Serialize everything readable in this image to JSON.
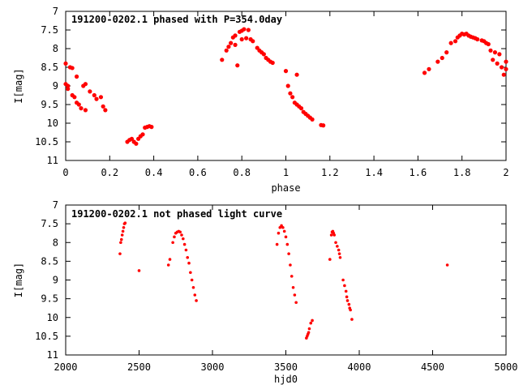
{
  "chart_data": [
    {
      "type": "scatter",
      "title": "191200-0202.1 phased with P=354.0day",
      "xlabel": "phase",
      "ylabel": "I[mag]",
      "xlim": [
        0,
        2
      ],
      "ylim": [
        11,
        7
      ],
      "x_inverted": false,
      "y_inverted": true,
      "x_ticks": [
        0,
        0.2,
        0.4,
        0.6,
        0.8,
        1,
        1.2,
        1.4,
        1.6,
        1.8,
        2
      ],
      "x_tick_labels": [
        "0",
        "0.2",
        "0.4",
        "0.6",
        "0.8",
        "1",
        "1.2",
        "1.4",
        "1.6",
        "1.8",
        "2"
      ],
      "y_ticks": [
        7,
        7.5,
        8,
        8.5,
        9,
        9.5,
        10,
        10.5,
        11
      ],
      "y_tick_labels": [
        "7",
        "7.5",
        "8",
        "8.5",
        "9",
        "9.5",
        "10",
        "10.5",
        "11"
      ],
      "grid": false,
      "marker_color": "#ff0000",
      "series": [
        {
          "points": [
            [
              0.0,
              8.4
            ],
            [
              0.0,
              8.95
            ],
            [
              0.01,
              9.0
            ],
            [
              0.01,
              9.08
            ],
            [
              0.02,
              8.5
            ],
            [
              0.03,
              8.52
            ],
            [
              0.03,
              9.25
            ],
            [
              0.04,
              9.3
            ],
            [
              0.05,
              8.75
            ],
            [
              0.05,
              9.45
            ],
            [
              0.06,
              9.5
            ],
            [
              0.07,
              9.6
            ],
            [
              0.08,
              9.0
            ],
            [
              0.09,
              8.95
            ],
            [
              0.09,
              9.65
            ],
            [
              0.11,
              9.15
            ],
            [
              0.13,
              9.25
            ],
            [
              0.14,
              9.35
            ],
            [
              0.16,
              9.3
            ],
            [
              0.17,
              9.55
            ],
            [
              0.18,
              9.65
            ],
            [
              0.28,
              10.5
            ],
            [
              0.29,
              10.45
            ],
            [
              0.3,
              10.42
            ],
            [
              0.31,
              10.5
            ],
            [
              0.32,
              10.55
            ],
            [
              0.33,
              10.42
            ],
            [
              0.34,
              10.35
            ],
            [
              0.35,
              10.3
            ],
            [
              0.36,
              10.12
            ],
            [
              0.37,
              10.1
            ],
            [
              0.38,
              10.08
            ],
            [
              0.39,
              10.1
            ],
            [
              0.71,
              8.3
            ],
            [
              0.73,
              8.05
            ],
            [
              0.74,
              7.95
            ],
            [
              0.75,
              7.85
            ],
            [
              0.76,
              7.7
            ],
            [
              0.77,
              7.65
            ],
            [
              0.77,
              7.9
            ],
            [
              0.78,
              8.45
            ],
            [
              0.79,
              7.55
            ],
            [
              0.8,
              7.52
            ],
            [
              0.8,
              7.75
            ],
            [
              0.81,
              7.48
            ],
            [
              0.82,
              7.72
            ],
            [
              0.83,
              7.5
            ],
            [
              0.84,
              7.75
            ],
            [
              0.85,
              7.8
            ],
            [
              0.87,
              7.98
            ],
            [
              0.88,
              8.05
            ],
            [
              0.89,
              8.1
            ],
            [
              0.9,
              8.15
            ],
            [
              0.91,
              8.25
            ],
            [
              0.92,
              8.3
            ],
            [
              0.93,
              8.35
            ],
            [
              0.94,
              8.38
            ],
            [
              1.0,
              8.6
            ],
            [
              1.01,
              9.0
            ],
            [
              1.02,
              9.2
            ],
            [
              1.03,
              9.3
            ],
            [
              1.04,
              9.45
            ],
            [
              1.05,
              8.7
            ],
            [
              1.05,
              9.5
            ],
            [
              1.06,
              9.55
            ],
            [
              1.07,
              9.6
            ],
            [
              1.08,
              9.7
            ],
            [
              1.09,
              9.75
            ],
            [
              1.1,
              9.8
            ],
            [
              1.11,
              9.85
            ],
            [
              1.12,
              9.9
            ],
            [
              1.16,
              10.05
            ],
            [
              1.17,
              10.06
            ],
            [
              1.63,
              8.65
            ],
            [
              1.65,
              8.55
            ],
            [
              1.69,
              8.35
            ],
            [
              1.71,
              8.25
            ],
            [
              1.73,
              8.1
            ],
            [
              1.75,
              7.85
            ],
            [
              1.77,
              7.8
            ],
            [
              1.78,
              7.7
            ],
            [
              1.79,
              7.65
            ],
            [
              1.8,
              7.6
            ],
            [
              1.81,
              7.62
            ],
            [
              1.82,
              7.6
            ],
            [
              1.83,
              7.65
            ],
            [
              1.84,
              7.68
            ],
            [
              1.85,
              7.7
            ],
            [
              1.86,
              7.72
            ],
            [
              1.87,
              7.75
            ],
            [
              1.89,
              7.78
            ],
            [
              1.9,
              7.8
            ],
            [
              1.91,
              7.85
            ],
            [
              1.92,
              7.88
            ],
            [
              1.93,
              8.05
            ],
            [
              1.94,
              8.3
            ],
            [
              1.95,
              8.1
            ],
            [
              1.96,
              8.4
            ],
            [
              1.97,
              8.15
            ],
            [
              1.98,
              8.5
            ],
            [
              1.99,
              8.7
            ],
            [
              2.0,
              8.55
            ],
            [
              2.0,
              8.35
            ]
          ]
        }
      ]
    },
    {
      "type": "scatter",
      "title": "191200-0202.1 not phased light curve",
      "xlabel": "hjd0",
      "ylabel": "I[mag]",
      "xlim": [
        2000,
        5000
      ],
      "ylim": [
        11,
        7
      ],
      "x_inverted": false,
      "y_inverted": true,
      "x_ticks": [
        2000,
        2500,
        3000,
        3500,
        4000,
        4500,
        5000
      ],
      "x_tick_labels": [
        "2000",
        "2500",
        "3000",
        "3500",
        "4000",
        "4500",
        "5000"
      ],
      "y_ticks": [
        7,
        7.5,
        8,
        8.5,
        9,
        9.5,
        10,
        10.5,
        11
      ],
      "y_tick_labels": [
        "7",
        "7.5",
        "8",
        "8.5",
        "9",
        "9.5",
        "10",
        "10.5",
        "11"
      ],
      "grid": false,
      "marker_color": "#ff0000",
      "series": [
        {
          "points": [
            [
              2370,
              8.3
            ],
            [
              2375,
              8.0
            ],
            [
              2380,
              7.92
            ],
            [
              2385,
              7.8
            ],
            [
              2390,
              7.7
            ],
            [
              2395,
              7.6
            ],
            [
              2400,
              7.5
            ],
            [
              2405,
              7.48
            ],
            [
              2500,
              8.75
            ],
            [
              2700,
              8.6
            ],
            [
              2710,
              8.45
            ],
            [
              2730,
              8.0
            ],
            [
              2740,
              7.85
            ],
            [
              2750,
              7.75
            ],
            [
              2760,
              7.72
            ],
            [
              2770,
              7.7
            ],
            [
              2780,
              7.72
            ],
            [
              2790,
              7.8
            ],
            [
              2800,
              7.9
            ],
            [
              2810,
              8.05
            ],
            [
              2820,
              8.2
            ],
            [
              2830,
              8.4
            ],
            [
              2840,
              8.55
            ],
            [
              2850,
              8.8
            ],
            [
              2860,
              9.0
            ],
            [
              2870,
              9.2
            ],
            [
              2880,
              9.4
            ],
            [
              2890,
              9.55
            ],
            [
              3440,
              8.05
            ],
            [
              3450,
              7.75
            ],
            [
              3460,
              7.6
            ],
            [
              3470,
              7.55
            ],
            [
              3480,
              7.6
            ],
            [
              3490,
              7.7
            ],
            [
              3500,
              7.85
            ],
            [
              3510,
              8.05
            ],
            [
              3520,
              8.3
            ],
            [
              3530,
              8.6
            ],
            [
              3540,
              8.9
            ],
            [
              3550,
              9.2
            ],
            [
              3560,
              9.4
            ],
            [
              3570,
              9.6
            ],
            [
              3640,
              10.55
            ],
            [
              3645,
              10.5
            ],
            [
              3650,
              10.45
            ],
            [
              3655,
              10.4
            ],
            [
              3660,
              10.3
            ],
            [
              3670,
              10.15
            ],
            [
              3680,
              10.08
            ],
            [
              3800,
              8.45
            ],
            [
              3810,
              7.8
            ],
            [
              3815,
              7.72
            ],
            [
              3820,
              7.7
            ],
            [
              3825,
              7.75
            ],
            [
              3830,
              7.8
            ],
            [
              3840,
              8.0
            ],
            [
              3850,
              8.1
            ],
            [
              3860,
              8.2
            ],
            [
              3865,
              8.3
            ],
            [
              3870,
              8.4
            ],
            [
              3890,
              9.0
            ],
            [
              3900,
              9.15
            ],
            [
              3910,
              9.3
            ],
            [
              3915,
              9.45
            ],
            [
              3920,
              9.55
            ],
            [
              3930,
              9.65
            ],
            [
              3935,
              9.75
            ],
            [
              3940,
              9.8
            ],
            [
              3950,
              10.05
            ],
            [
              4600,
              8.6
            ]
          ]
        }
      ]
    }
  ]
}
